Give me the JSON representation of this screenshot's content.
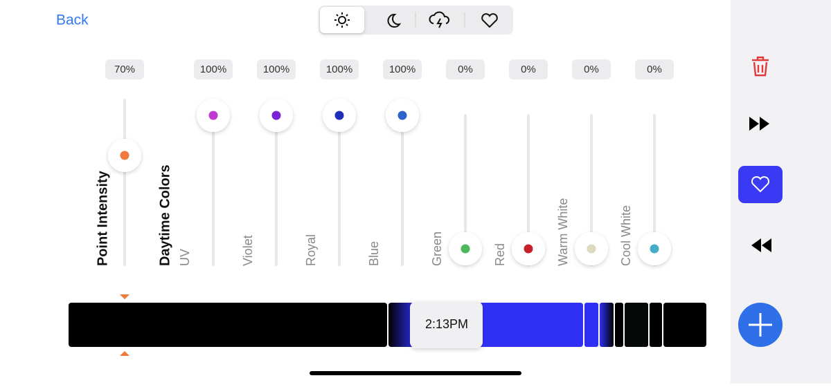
{
  "header": {
    "back": "Back"
  },
  "section_label": "Daytime Colors",
  "sliders": [
    {
      "label": "Point Intensity",
      "value": 70,
      "value_label": "70%",
      "color": "#ee7a3c"
    },
    {
      "label": "UV",
      "value": 100,
      "value_label": "100%",
      "color": "#c03ad0"
    },
    {
      "label": "Violet",
      "value": 100,
      "value_label": "100%",
      "color": "#7a22d6"
    },
    {
      "label": "Royal",
      "value": 100,
      "value_label": "100%",
      "color": "#1f2fb8"
    },
    {
      "label": "Blue",
      "value": 100,
      "value_label": "100%",
      "color": "#2d63c8"
    },
    {
      "label": "Green",
      "value": 0,
      "value_label": "0%",
      "color": "#4cb860"
    },
    {
      "label": "Red",
      "value": 0,
      "value_label": "0%",
      "color": "#c8202a"
    },
    {
      "label": "Warm White",
      "value": 0,
      "value_label": "0%",
      "color": "#ddd8c0"
    },
    {
      "label": "Cool White",
      "value": 0,
      "value_label": "0%",
      "color": "#45aec6"
    }
  ],
  "timeline": {
    "time": "2:13PM"
  }
}
